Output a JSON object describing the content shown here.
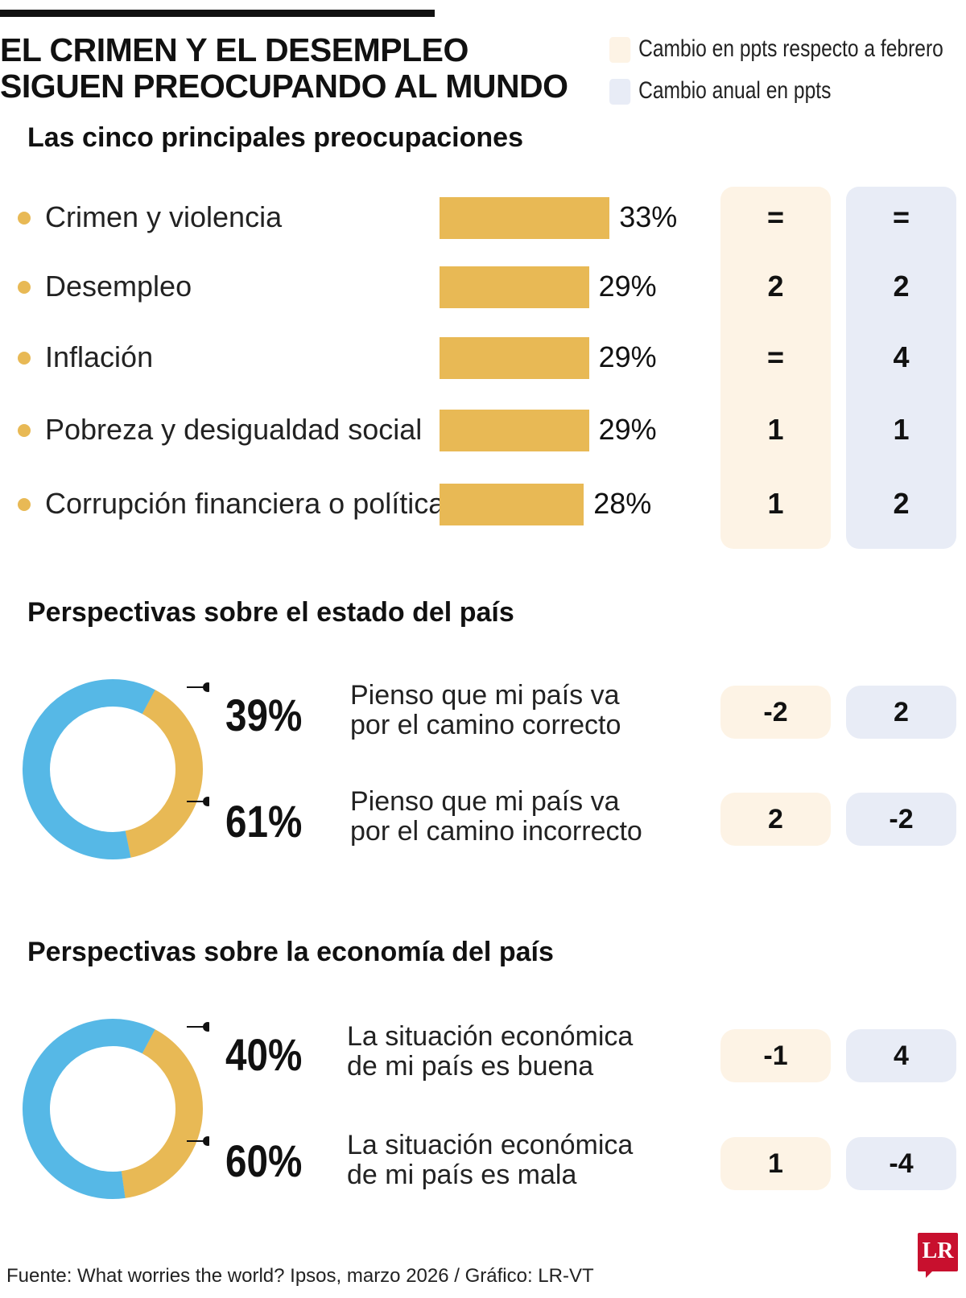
{
  "header": {
    "title_line1": "EL CRIMEN Y EL DESEMPLEO",
    "title_line2": "SIGUEN PREOCUPANDO AL MUNDO"
  },
  "legend": {
    "feb_label": "Cambio en ppts respecto a febrero",
    "year_label": "Cambio anual en ppts"
  },
  "colors": {
    "gold": "#e8b955",
    "blue": "#56b8e6",
    "feb_bg": "#fdf3e5",
    "year_bg": "#e8ecf6"
  },
  "sections": {
    "concerns_title": "Las cinco principales preocupaciones",
    "country_title": "Perspectivas sobre el estado del país",
    "economy_title": "Perspectivas sobre la economía del país"
  },
  "chart_data": [
    {
      "type": "bar",
      "categories": [
        "Crimen y violencia",
        "Desempleo",
        "Inflación",
        "Pobreza y desigualdad social",
        "Corrupción financiera o política"
      ],
      "values": [
        33,
        29,
        29,
        29,
        28
      ],
      "value_labels": [
        "33%",
        "29%",
        "29%",
        "29%",
        "28%"
      ],
      "change_vs_february": [
        "=",
        "2",
        "=",
        "1",
        "1"
      ],
      "annual_change": [
        "=",
        "2",
        "4",
        "1",
        "2"
      ]
    },
    {
      "type": "pie",
      "labels": [
        "Pienso que mi país va por el camino correcto",
        "Pienso que mi país va por el camino incorrecto"
      ],
      "values": [
        39,
        61
      ],
      "value_labels": [
        "39%",
        "61%"
      ],
      "change_vs_february": [
        "-2",
        "2"
      ],
      "annual_change": [
        "2",
        "-2"
      ]
    },
    {
      "type": "pie",
      "labels": [
        "La situación económica de mi país es buena",
        "La situación económica de mi país es mala"
      ],
      "values": [
        40,
        60
      ],
      "value_labels": [
        "40%",
        "60%"
      ],
      "change_vs_february": [
        "-1",
        "1"
      ],
      "annual_change": [
        "4",
        "-4"
      ]
    }
  ],
  "statements": {
    "country_right_1": "Pienso que mi país va",
    "country_right_2": "por el camino correcto",
    "country_wrong_1": "Pienso que mi país va",
    "country_wrong_2": "por el camino incorrecto",
    "econ_good_1": "La situación económica",
    "econ_good_2": "de mi país es buena",
    "econ_bad_1": "La situación económica",
    "econ_bad_2": "de mi país es mala"
  },
  "footer": {
    "source": "Fuente: What worries the world? Ipsos, marzo 2026 / Gráfico: LR-VT",
    "logo": "LR"
  }
}
